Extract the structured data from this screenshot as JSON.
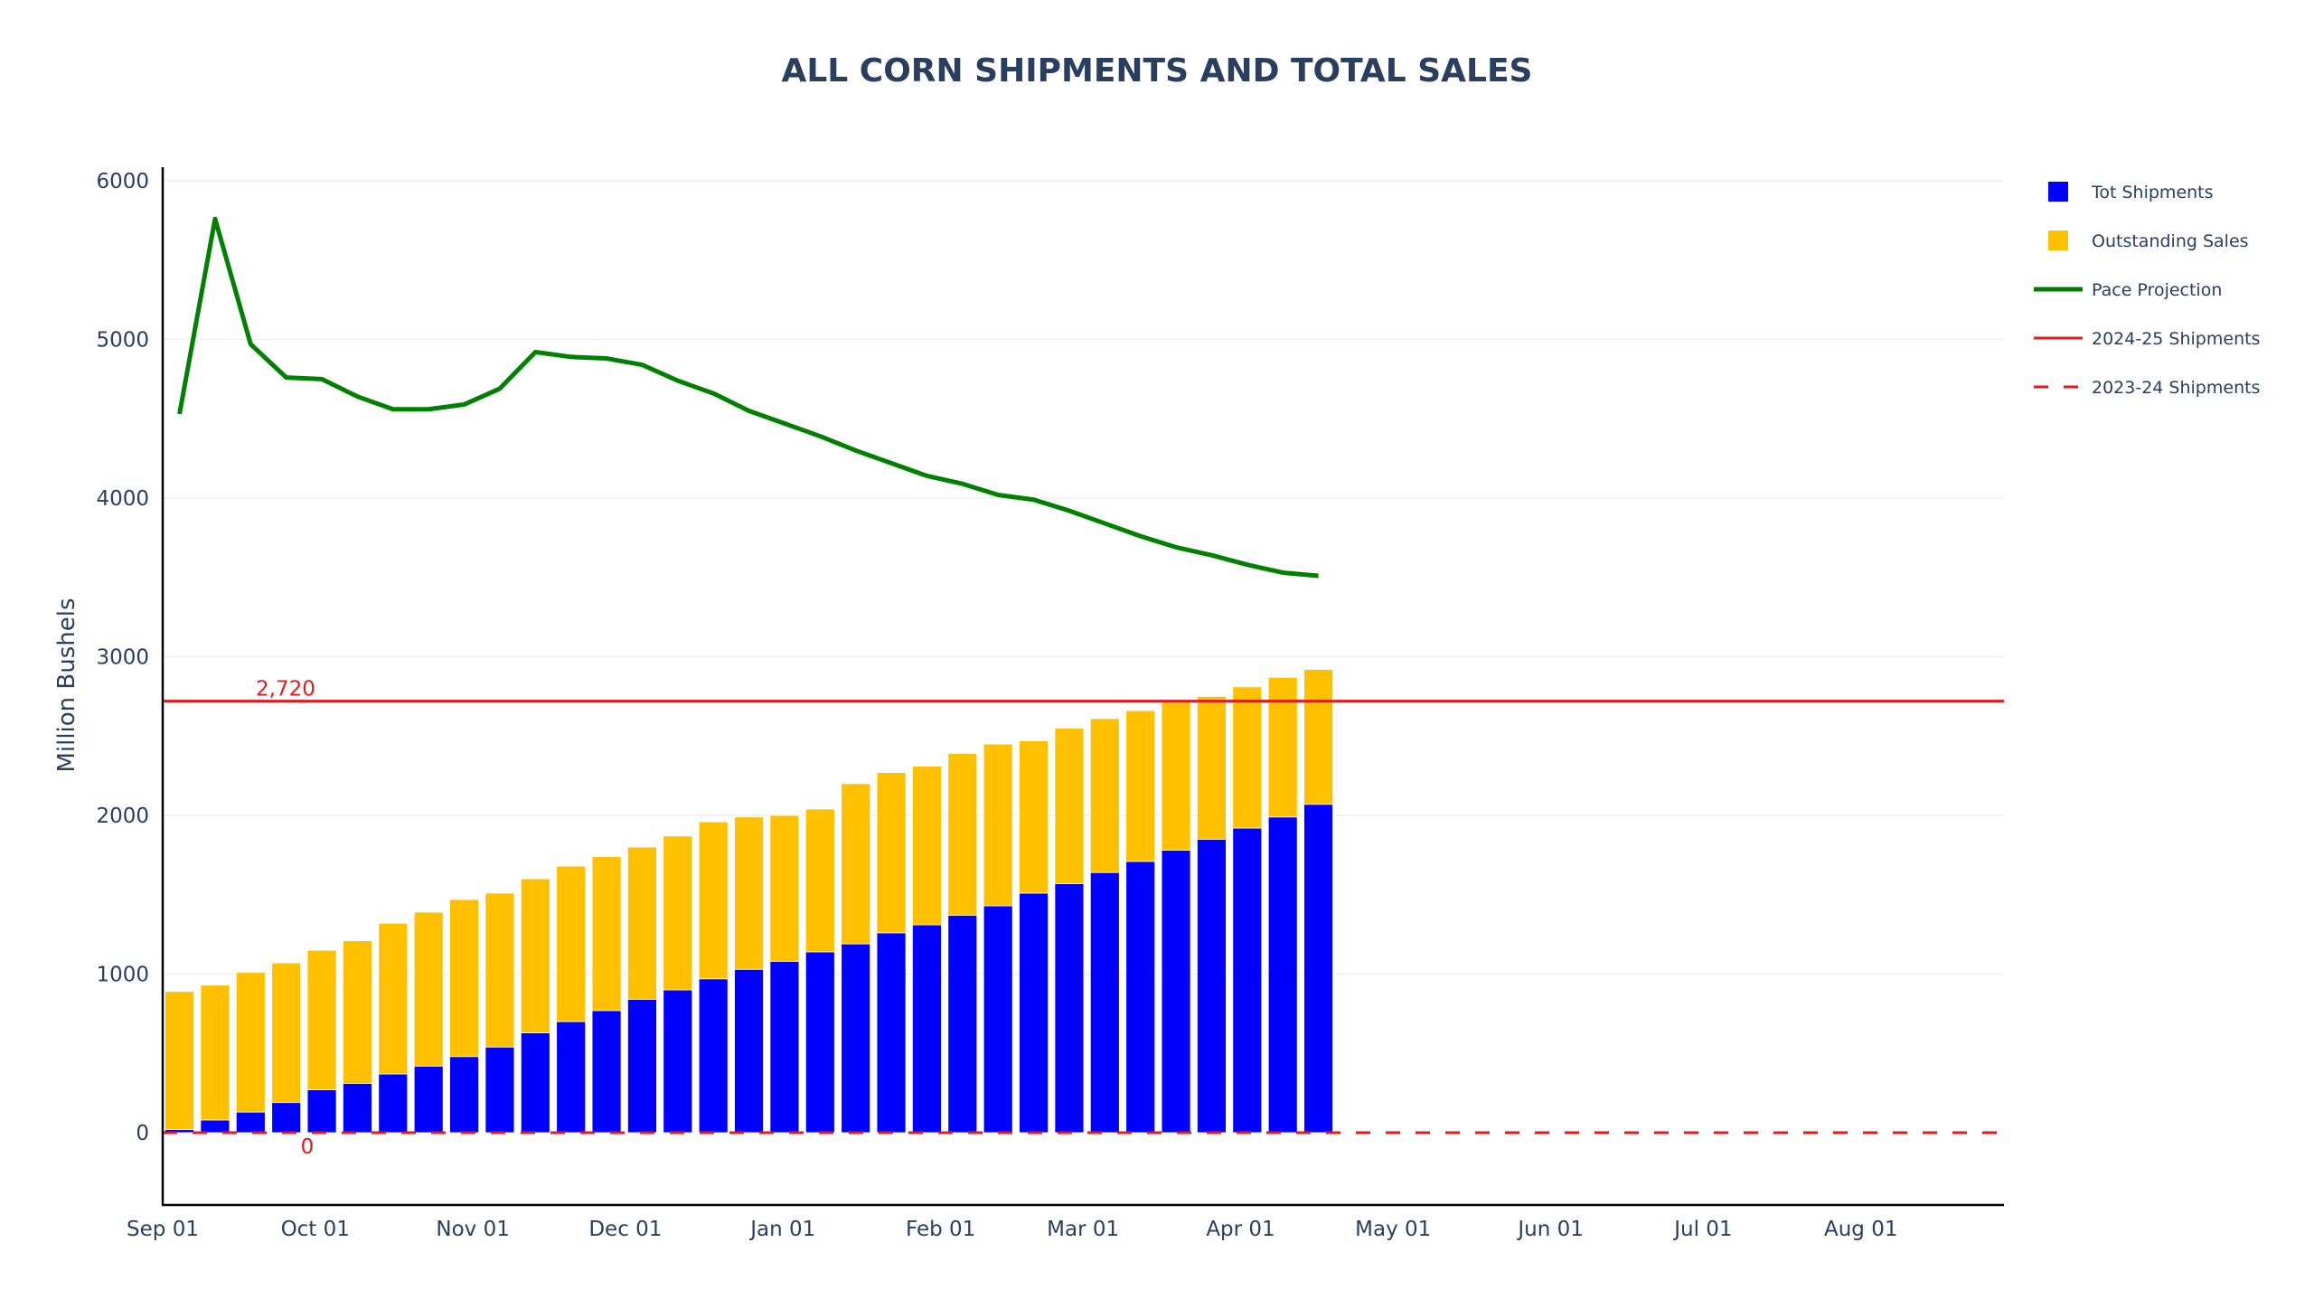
{
  "chart_data": {
    "type": "bar",
    "title": "ALL CORN SHIPMENTS AND TOTAL SALES",
    "xlabel": "",
    "ylabel": "Million Bushels",
    "ylim": [
      -420,
      6100
    ],
    "yticks": [
      0,
      1000,
      2000,
      3000,
      4000,
      5000,
      6000
    ],
    "xticks": [
      "Sep 01",
      "Oct 01",
      "Nov 01",
      "Dec 01",
      "Jan 01",
      "Feb 01",
      "Mar 01",
      "Apr 01",
      "May 01",
      "Jun 01",
      "Jul 01",
      "Aug 01"
    ],
    "xrange_days": [
      0,
      365
    ],
    "grid": true,
    "legend_position": "top-right",
    "x_days": [
      3.3,
      10.3,
      17.3,
      24.3,
      31.3,
      38.3,
      45.3,
      52.3,
      59.3,
      66.3,
      73.3,
      80.3,
      87.3,
      94.3,
      101.3,
      108.3,
      115.3,
      122.3,
      129.3,
      136.3,
      143.3,
      150.3,
      157.3,
      164.3,
      171.3,
      178.3,
      185.3,
      192.3,
      199.3,
      206.3,
      213.3,
      220.3,
      227.3
    ],
    "series": [
      {
        "name": "Tot Shipments",
        "kind": "bar",
        "color": "#0000ff",
        "values": [
          20,
          80,
          130,
          190,
          270,
          310,
          370,
          420,
          480,
          540,
          630,
          700,
          770,
          840,
          900,
          970,
          1030,
          1080,
          1140,
          1190,
          1260,
          1310,
          1370,
          1430,
          1510,
          1570,
          1640,
          1710,
          1780,
          1850,
          1920,
          1990,
          2070
        ]
      },
      {
        "name": "Outstanding Sales",
        "kind": "bar",
        "color": "#ffc000",
        "values": [
          870,
          850,
          880,
          880,
          880,
          900,
          950,
          970,
          990,
          970,
          970,
          980,
          970,
          960,
          970,
          990,
          960,
          920,
          900,
          1010,
          1010,
          1000,
          1020,
          1020,
          960,
          980,
          970,
          950,
          940,
          900,
          890,
          880,
          850
        ]
      },
      {
        "name": "Pace Projection",
        "kind": "line",
        "color": "#008000",
        "values": [
          4530,
          5760,
          4970,
          4760,
          4750,
          4640,
          4560,
          4560,
          4590,
          4690,
          4920,
          4890,
          4880,
          4840,
          4740,
          4660,
          4550,
          4470,
          4390,
          4300,
          4220,
          4140,
          4090,
          4020,
          3990,
          3920,
          3840,
          3760,
          3690,
          3640,
          3580,
          3530,
          3510
        ]
      },
      {
        "name": "2024-25 Shipments",
        "kind": "hline",
        "color": "#e31a1c",
        "value": 2720,
        "label": "2,720"
      },
      {
        "name": "2023-24 Shipments",
        "kind": "hline-dashed",
        "color": "#e31a1c",
        "value": 0,
        "label": "0"
      }
    ]
  }
}
